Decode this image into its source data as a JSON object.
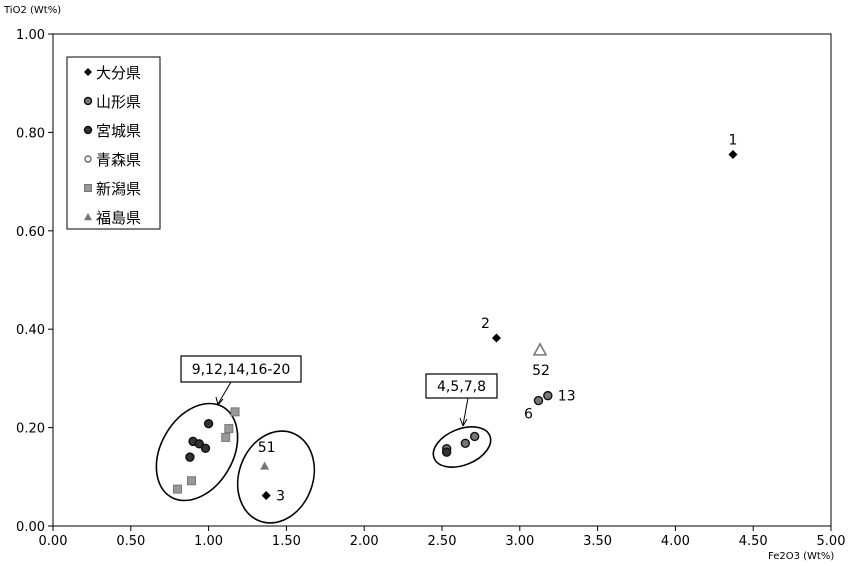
{
  "chart_data": {
    "type": "scatter",
    "title": "",
    "xlabel": "Fe2O3 (Wt%)",
    "ylabel": "TiO2 (Wt%)",
    "xlim": [
      0,
      5
    ],
    "ylim": [
      0,
      1
    ],
    "x_ticks": [
      "0.00",
      "0.50",
      "1.00",
      "1.50",
      "2.00",
      "2.50",
      "3.00",
      "3.50",
      "4.00",
      "4.50",
      "5.00"
    ],
    "y_ticks": [
      "0.00",
      "0.20",
      "0.40",
      "0.60",
      "0.80",
      "1.00"
    ],
    "grid": false,
    "legend_position": "top-left",
    "series": [
      {
        "name": "大分県",
        "marker": "diamond",
        "color": "#000000",
        "points": [
          [
            4.37,
            0.755
          ],
          [
            2.85,
            0.382
          ],
          [
            1.37,
            0.062
          ]
        ]
      },
      {
        "name": "山形県",
        "marker": "circle",
        "color": "#777777",
        "points": [
          [
            2.53,
            0.157
          ],
          [
            2.65,
            0.168
          ],
          [
            2.71,
            0.182
          ],
          [
            3.12,
            0.255
          ],
          [
            3.18,
            0.265
          ]
        ]
      },
      {
        "name": "宮城県",
        "marker": "circle",
        "color": "#333333",
        "points": [
          [
            0.88,
            0.14
          ],
          [
            0.9,
            0.172
          ],
          [
            0.94,
            0.167
          ],
          [
            0.98,
            0.158
          ],
          [
            1.0,
            0.208
          ],
          [
            2.53,
            0.15
          ]
        ]
      },
      {
        "name": "青森県",
        "marker": "hollow-circle",
        "color": "#666666",
        "points": []
      },
      {
        "name": "新潟県",
        "marker": "square",
        "color": "#999999",
        "points": [
          [
            0.8,
            0.075
          ],
          [
            0.89,
            0.092
          ],
          [
            1.11,
            0.18
          ],
          [
            1.13,
            0.198
          ],
          [
            1.17,
            0.232
          ]
        ]
      },
      {
        "name": "福島県",
        "marker": "triangle",
        "color": "#777777",
        "points": [
          [
            1.36,
            0.122
          ],
          [
            3.13,
            0.358
          ]
        ]
      }
    ],
    "point_labels": [
      {
        "text": "1",
        "x": 4.37,
        "y": 0.755
      },
      {
        "text": "2",
        "x": 2.85,
        "y": 0.382
      },
      {
        "text": "3",
        "x": 1.37,
        "y": 0.062
      },
      {
        "text": "52",
        "x": 3.13,
        "y": 0.358
      },
      {
        "text": "13",
        "x": 3.18,
        "y": 0.265
      },
      {
        "text": "6",
        "x": 3.12,
        "y": 0.255
      },
      {
        "text": "51",
        "x": 1.36,
        "y": 0.122
      }
    ],
    "callouts": [
      {
        "text": "9,12,14,16-20"
      },
      {
        "text": "4,5,7,8"
      }
    ]
  }
}
